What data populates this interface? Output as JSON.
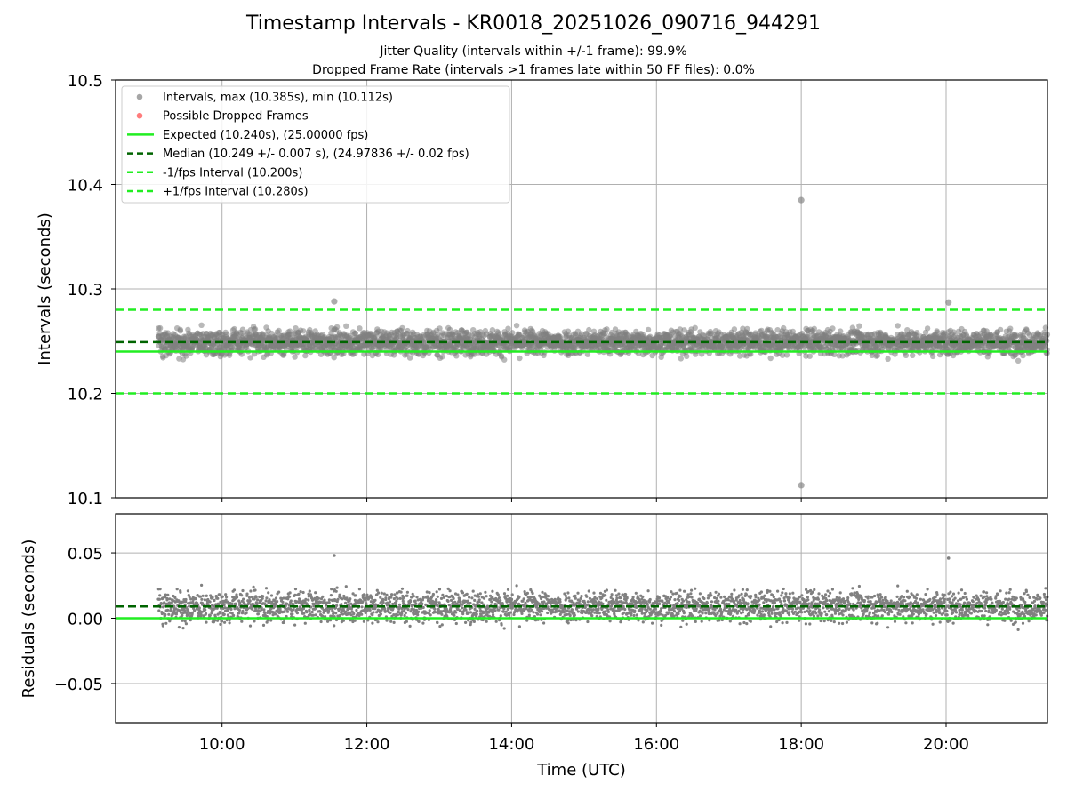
{
  "chart_data": [
    {
      "type": "scatter",
      "title": "Timestamp Intervals - KR0018_20251026_090716_944291",
      "subtitle_lines": [
        "Jitter Quality (intervals within +/-1 frame): 99.9%",
        "Dropped Frame Rate (intervals >1 frames late within 50 FF files): 0.0%"
      ],
      "ylabel": "Intervals (seconds)",
      "ylim": [
        10.1,
        10.5
      ],
      "y_ticks": [
        "10.1",
        "10.2",
        "10.3",
        "10.4",
        "10.5"
      ],
      "grid": true,
      "legend_position": "top-left",
      "legend": [
        {
          "label": "Intervals, max (10.385s), min (10.112s)",
          "kind": "marker",
          "color": "#808080"
        },
        {
          "label": "Possible Dropped Frames",
          "kind": "marker",
          "color": "#ff4444"
        },
        {
          "label": "Expected (10.240s), (25.00000 fps)",
          "kind": "solid",
          "color": "#22ee22"
        },
        {
          "label": "Median (10.249 +/- 0.007 s), (24.97836 +/- 0.02 fps)",
          "kind": "dashed",
          "color": "#006400"
        },
        {
          "label": "-1/fps Interval (10.200s)",
          "kind": "dashed",
          "color": "#22ee22"
        },
        {
          "label": "+1/fps Interval (10.280s)",
          "kind": "dashed",
          "color": "#22ee22"
        }
      ],
      "lines": {
        "expected": 10.24,
        "median": 10.249,
        "minus_fps": 10.2,
        "plus_fps": 10.28
      },
      "series": [
        {
          "name": "Intervals, max (10.385s), min (10.112s)",
          "x_start_hours": 9.12,
          "x_end_hours": 21.4,
          "y_center": 10.249,
          "y_spread": 0.007,
          "max": 10.385,
          "min": 10.112,
          "outliers": [
            {
              "x": "11:33",
              "y": 10.288
            },
            {
              "x": "18:00",
              "y": 10.385
            },
            {
              "x": "18:00",
              "y": 10.112
            },
            {
              "x": "20:02",
              "y": 10.287
            }
          ]
        }
      ]
    },
    {
      "type": "scatter",
      "xlabel": "Time (UTC)",
      "ylabel": "Residuals (seconds)",
      "ylim": [
        -0.08,
        0.08
      ],
      "y_ticks": [
        "−0.05",
        "0.00",
        "0.05"
      ],
      "y_tick_values": [
        -0.05,
        0.0,
        0.05
      ],
      "x_ticks": [
        "10:00",
        "12:00",
        "14:00",
        "16:00",
        "18:00",
        "20:00"
      ],
      "x_tick_values_hours": [
        10,
        12,
        14,
        16,
        18,
        20
      ],
      "xlim_hours": [
        8.53,
        21.4
      ],
      "grid": true,
      "lines": {
        "expected": 0.0,
        "median": 0.009
      },
      "series": [
        {
          "name": "Residuals",
          "y_center": 0.009,
          "y_spread": 0.007,
          "outliers": [
            {
              "x": "11:33",
              "y": 0.048
            },
            {
              "x": "20:02",
              "y": 0.046
            }
          ]
        }
      ]
    }
  ],
  "colors": {
    "points": "#808080",
    "expected": "#22ee22",
    "median": "#006400",
    "grid": "#b0b0b0"
  }
}
